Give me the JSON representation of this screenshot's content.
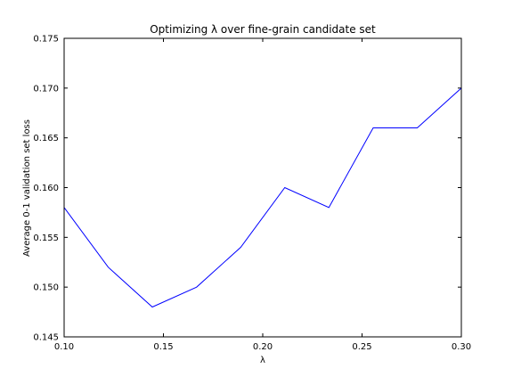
{
  "chart_data": {
    "type": "line",
    "title": "Optimizing λ over fine-grain candidate set",
    "xlabel": "λ",
    "ylabel": "Average 0-1 validation set loss",
    "xlim": [
      0.1,
      0.3
    ],
    "ylim": [
      0.145,
      0.175
    ],
    "x_ticks": [
      "0.10",
      "0.15",
      "0.20",
      "0.25",
      "0.30"
    ],
    "y_ticks": [
      "0.145",
      "0.150",
      "0.155",
      "0.160",
      "0.165",
      "0.170",
      "0.175"
    ],
    "grid": false,
    "line_color": "#0000ff",
    "series": [
      {
        "x": [
          0.1,
          0.1222,
          0.1444,
          0.1667,
          0.1889,
          0.2111,
          0.2333,
          0.2556,
          0.2778,
          0.3
        ],
        "values": [
          0.158,
          0.152,
          0.148,
          0.15,
          0.154,
          0.16,
          0.158,
          0.166,
          0.166,
          0.17
        ]
      }
    ]
  }
}
